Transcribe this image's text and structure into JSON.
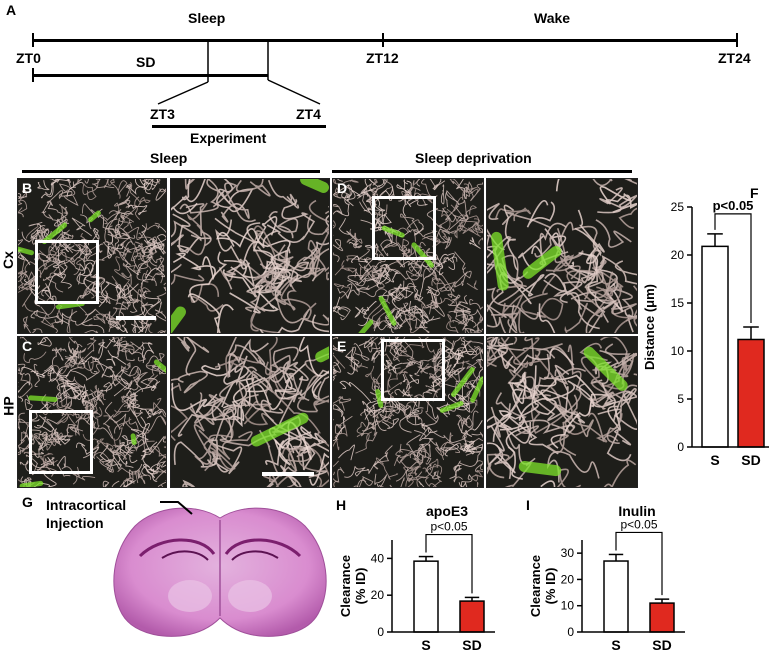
{
  "timeline": {
    "panel_letter": "A",
    "sleep_label": "Sleep",
    "wake_label": "Wake",
    "zt0": "ZT0",
    "zt12": "ZT12",
    "zt24": "ZT24",
    "sd_label": "SD",
    "zt3": "ZT3",
    "zt4": "ZT4",
    "experiment_label": "Experiment"
  },
  "micrographs": {
    "sleep_header": "Sleep",
    "sd_header": "Sleep deprivation",
    "letters": [
      "B",
      "C",
      "D",
      "E"
    ],
    "row_labels": [
      "Cx",
      "HP"
    ]
  },
  "brain": {
    "panel_letter": "G",
    "annotation_line1": "Intracortical",
    "annotation_line2": "Injection"
  },
  "colors": {
    "sleep_bar": "#ffffff",
    "sd_bar": "#e0291f",
    "vessel_green": "#7ee52a",
    "stain_pink": "#d98ccf"
  },
  "chart_data": [
    {
      "panel": "F",
      "type": "bar",
      "categories": [
        "S",
        "SD"
      ],
      "values": [
        20.9,
        11.2
      ],
      "errors": [
        1.3,
        1.3
      ],
      "ylabel": "Distance (μm)",
      "ylim": [
        0,
        25
      ],
      "yticks": [
        0,
        5,
        10,
        15,
        20,
        25
      ],
      "significance": "p<0.05"
    },
    {
      "panel": "H",
      "type": "bar",
      "title": "apoE3",
      "categories": [
        "S",
        "SD"
      ],
      "values": [
        38.5,
        16.8
      ],
      "errors": [
        2.5,
        2.0
      ],
      "ylabel": "Clearance (% ID)",
      "ylim": [
        0,
        50
      ],
      "yticks": [
        0,
        20,
        40
      ],
      "significance": "p<0.05"
    },
    {
      "panel": "I",
      "type": "bar",
      "title": "Inulin",
      "categories": [
        "S",
        "SD"
      ],
      "values": [
        27.0,
        11.0
      ],
      "errors": [
        2.5,
        1.5
      ],
      "ylabel": "Clearance (% ID)",
      "ylim": [
        0,
        35
      ],
      "yticks": [
        0,
        10,
        20,
        30
      ],
      "significance": "p<0.05"
    }
  ]
}
